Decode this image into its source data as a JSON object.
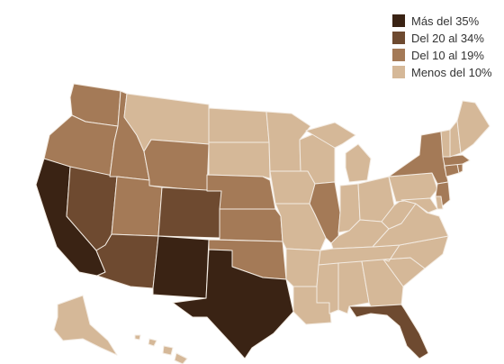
{
  "legend": {
    "items": [
      {
        "label": "Más del 35%",
        "color": "#3a2314"
      },
      {
        "label": "Del 20 al 34%",
        "color": "#6e4a30"
      },
      {
        "label": "Del 10 al 19%",
        "color": "#a47a57"
      },
      {
        "label": "Menos del 10%",
        "color": "#d5b898"
      }
    ]
  },
  "states": [
    {
      "name": "WA",
      "category": 2
    },
    {
      "name": "OR",
      "category": 2
    },
    {
      "name": "CA",
      "category": 0
    },
    {
      "name": "NV",
      "category": 1
    },
    {
      "name": "ID",
      "category": 2
    },
    {
      "name": "MT",
      "category": 3
    },
    {
      "name": "WY",
      "category": 2
    },
    {
      "name": "UT",
      "category": 2
    },
    {
      "name": "AZ",
      "category": 1
    },
    {
      "name": "CO",
      "category": 1
    },
    {
      "name": "NM",
      "category": 0
    },
    {
      "name": "ND",
      "category": 3
    },
    {
      "name": "SD",
      "category": 3
    },
    {
      "name": "NE",
      "category": 2
    },
    {
      "name": "KS",
      "category": 2
    },
    {
      "name": "OK",
      "category": 2
    },
    {
      "name": "TX",
      "category": 0
    },
    {
      "name": "MN",
      "category": 3
    },
    {
      "name": "IA",
      "category": 3
    },
    {
      "name": "MO",
      "category": 3
    },
    {
      "name": "AR",
      "category": 3
    },
    {
      "name": "LA",
      "category": 3
    },
    {
      "name": "WI",
      "category": 3
    },
    {
      "name": "IL",
      "category": 2
    },
    {
      "name": "MI",
      "category": 3
    },
    {
      "name": "IN",
      "category": 3
    },
    {
      "name": "OH",
      "category": 3
    },
    {
      "name": "KY",
      "category": 3
    },
    {
      "name": "TN",
      "category": 3
    },
    {
      "name": "MS",
      "category": 3
    },
    {
      "name": "AL",
      "category": 3
    },
    {
      "name": "GA",
      "category": 3
    },
    {
      "name": "FL",
      "category": 1
    },
    {
      "name": "SC",
      "category": 3
    },
    {
      "name": "NC",
      "category": 3
    },
    {
      "name": "VA",
      "category": 3
    },
    {
      "name": "WV",
      "category": 3
    },
    {
      "name": "PA",
      "category": 3
    },
    {
      "name": "NY",
      "category": 2
    },
    {
      "name": "NJ",
      "category": 2
    },
    {
      "name": "CT",
      "category": 2
    },
    {
      "name": "RI",
      "category": 2
    },
    {
      "name": "MA",
      "category": 2
    },
    {
      "name": "VT",
      "category": 3
    },
    {
      "name": "NH",
      "category": 3
    },
    {
      "name": "ME",
      "category": 3
    },
    {
      "name": "MD",
      "category": 3
    },
    {
      "name": "DE",
      "category": 3
    },
    {
      "name": "AK",
      "category": 3
    },
    {
      "name": "HI",
      "category": 3
    }
  ]
}
